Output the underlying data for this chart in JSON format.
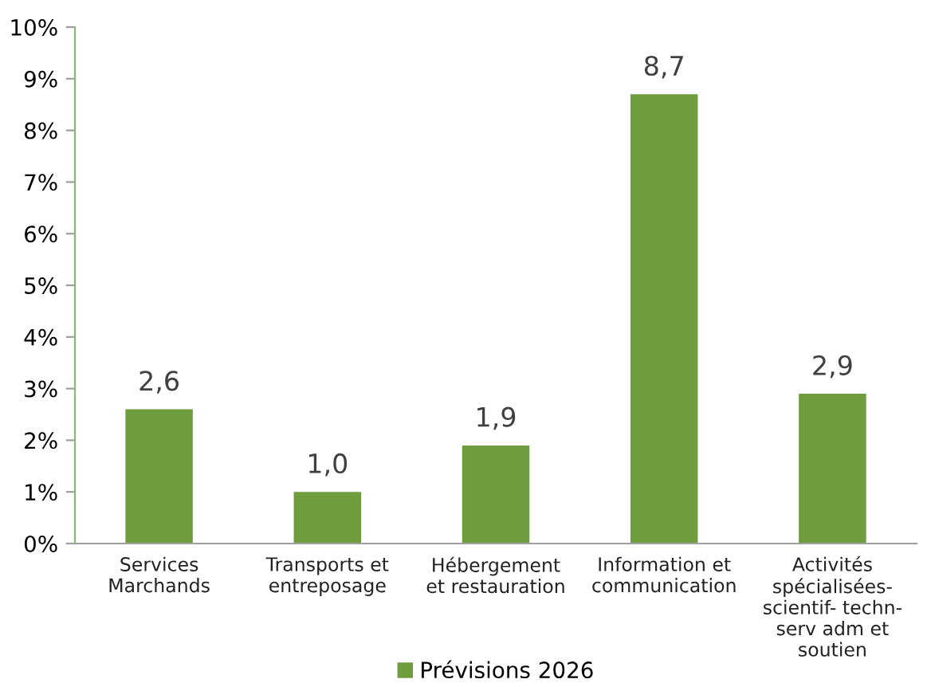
{
  "chart_data": {
    "type": "bar",
    "categories": [
      "Services\nMarchands",
      "Transports et\nentreposage",
      "Hébergement\net restauration",
      "Information et\ncommunication",
      "Activités\nspécialisées-\nscientif- techn-\nserv adm et\nsoutien"
    ],
    "series": [
      {
        "name": "Prévisions 2026",
        "color": "#6f9c3c",
        "values": [
          2.6,
          1.0,
          1.9,
          8.7,
          2.9
        ],
        "value_labels": [
          "2,6",
          "1,0",
          "1,9",
          "8,7",
          "2,9"
        ]
      }
    ],
    "ylim": [
      0,
      10
    ],
    "yticks": [
      {
        "value": 0,
        "label": "0%"
      },
      {
        "value": 1,
        "label": "1%"
      },
      {
        "value": 2,
        "label": "2%"
      },
      {
        "value": 3,
        "label": "3%"
      },
      {
        "value": 4,
        "label": "4%"
      },
      {
        "value": 5,
        "label": "5%"
      },
      {
        "value": 6,
        "label": "6%"
      },
      {
        "value": 7,
        "label": "7%"
      },
      {
        "value": 8,
        "label": "8%"
      },
      {
        "value": 9,
        "label": "9%"
      },
      {
        "value": 10,
        "label": "10%"
      }
    ],
    "legend": "bottom",
    "grid": false
  }
}
